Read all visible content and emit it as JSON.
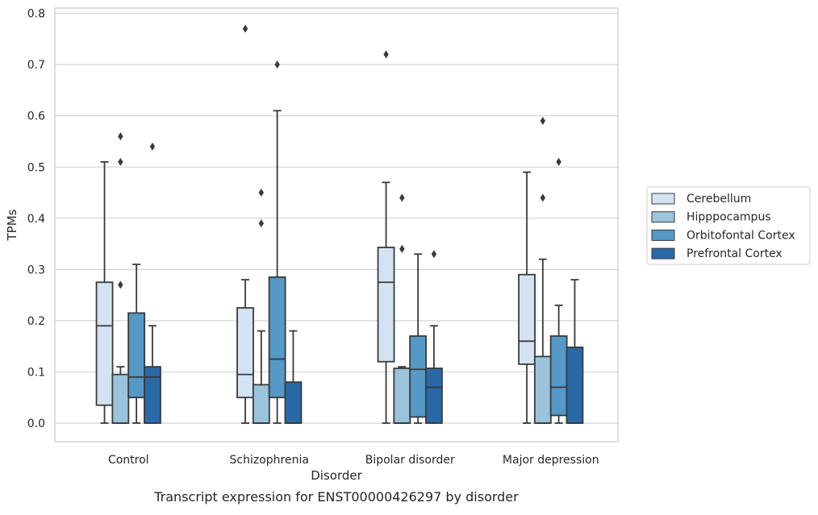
{
  "chart_data": {
    "type": "box",
    "title": "",
    "caption": "Transcript expression for ENST00000426297 by disorder",
    "xlabel": "Disorder",
    "ylabel": "TPMs",
    "ylim": [
      -0.037,
      0.812
    ],
    "yticks": [
      0.0,
      0.1,
      0.2,
      0.3,
      0.4,
      0.5,
      0.6,
      0.7,
      0.8
    ],
    "ytick_labels": [
      "0.0",
      "0.1",
      "0.2",
      "0.3",
      "0.4",
      "0.5",
      "0.6",
      "0.7",
      "0.8"
    ],
    "grid": "horizontal",
    "legend_position": "right",
    "categories": [
      "Control",
      "Schizophrenia",
      "Bipolar disorder",
      "Major depression"
    ],
    "series": [
      {
        "name": "Cerebellum",
        "color": "#d3e3f2",
        "boxes": [
          {
            "whislo": 0.0,
            "q1": 0.035,
            "med": 0.19,
            "q3": 0.275,
            "whishi": 0.51,
            "fliers": []
          },
          {
            "whislo": 0.0,
            "q1": 0.05,
            "med": 0.095,
            "q3": 0.225,
            "whishi": 0.28,
            "fliers": [
              0.77
            ]
          },
          {
            "whislo": 0.0,
            "q1": 0.12,
            "med": 0.275,
            "q3": 0.343,
            "whishi": 0.47,
            "fliers": [
              0.72
            ]
          },
          {
            "whislo": 0.0,
            "q1": 0.115,
            "med": 0.16,
            "q3": 0.29,
            "whishi": 0.49,
            "fliers": []
          }
        ]
      },
      {
        "name": "Hipppocampus",
        "color": "#9ac3dc",
        "boxes": [
          {
            "whislo": 0.0,
            "q1": 0.0,
            "med": 0.0,
            "q3": 0.095,
            "whishi": 0.11,
            "fliers": [
              0.27,
              0.51,
              0.56
            ]
          },
          {
            "whislo": 0.0,
            "q1": 0.0,
            "med": 0.0,
            "q3": 0.075,
            "whishi": 0.18,
            "fliers": [
              0.39,
              0.45
            ]
          },
          {
            "whislo": 0.0,
            "q1": 0.0,
            "med": 0.0,
            "q3": 0.107,
            "whishi": 0.11,
            "fliers": [
              0.34,
              0.44
            ]
          },
          {
            "whislo": 0.0,
            "q1": 0.0,
            "med": 0.0,
            "q3": 0.13,
            "whishi": 0.32,
            "fliers": [
              0.44,
              0.59
            ]
          }
        ]
      },
      {
        "name": "Orbitofontal Cortex",
        "color": "#5499c7",
        "boxes": [
          {
            "whislo": 0.0,
            "q1": 0.05,
            "med": 0.09,
            "q3": 0.215,
            "whishi": 0.31,
            "fliers": []
          },
          {
            "whislo": 0.0,
            "q1": 0.05,
            "med": 0.125,
            "q3": 0.285,
            "whishi": 0.61,
            "fliers": [
              0.7
            ]
          },
          {
            "whislo": 0.0,
            "q1": 0.012,
            "med": 0.105,
            "q3": 0.17,
            "whishi": 0.33,
            "fliers": []
          },
          {
            "whislo": 0.0,
            "q1": 0.015,
            "med": 0.07,
            "q3": 0.17,
            "whishi": 0.23,
            "fliers": [
              0.51
            ]
          }
        ]
      },
      {
        "name": "Prefrontal Cortex",
        "color": "#2a69a8",
        "boxes": [
          {
            "whislo": 0.0,
            "q1": 0.0,
            "med": 0.09,
            "q3": 0.11,
            "whishi": 0.19,
            "fliers": [
              0.54
            ]
          },
          {
            "whislo": 0.0,
            "q1": 0.0,
            "med": 0.0,
            "q3": 0.08,
            "whishi": 0.18,
            "fliers": []
          },
          {
            "whislo": 0.0,
            "q1": 0.0,
            "med": 0.07,
            "q3": 0.107,
            "whishi": 0.19,
            "fliers": [
              0.33
            ]
          },
          {
            "whislo": 0.0,
            "q1": 0.0,
            "med": 0.0,
            "q3": 0.148,
            "whishi": 0.28,
            "fliers": []
          }
        ]
      }
    ]
  }
}
